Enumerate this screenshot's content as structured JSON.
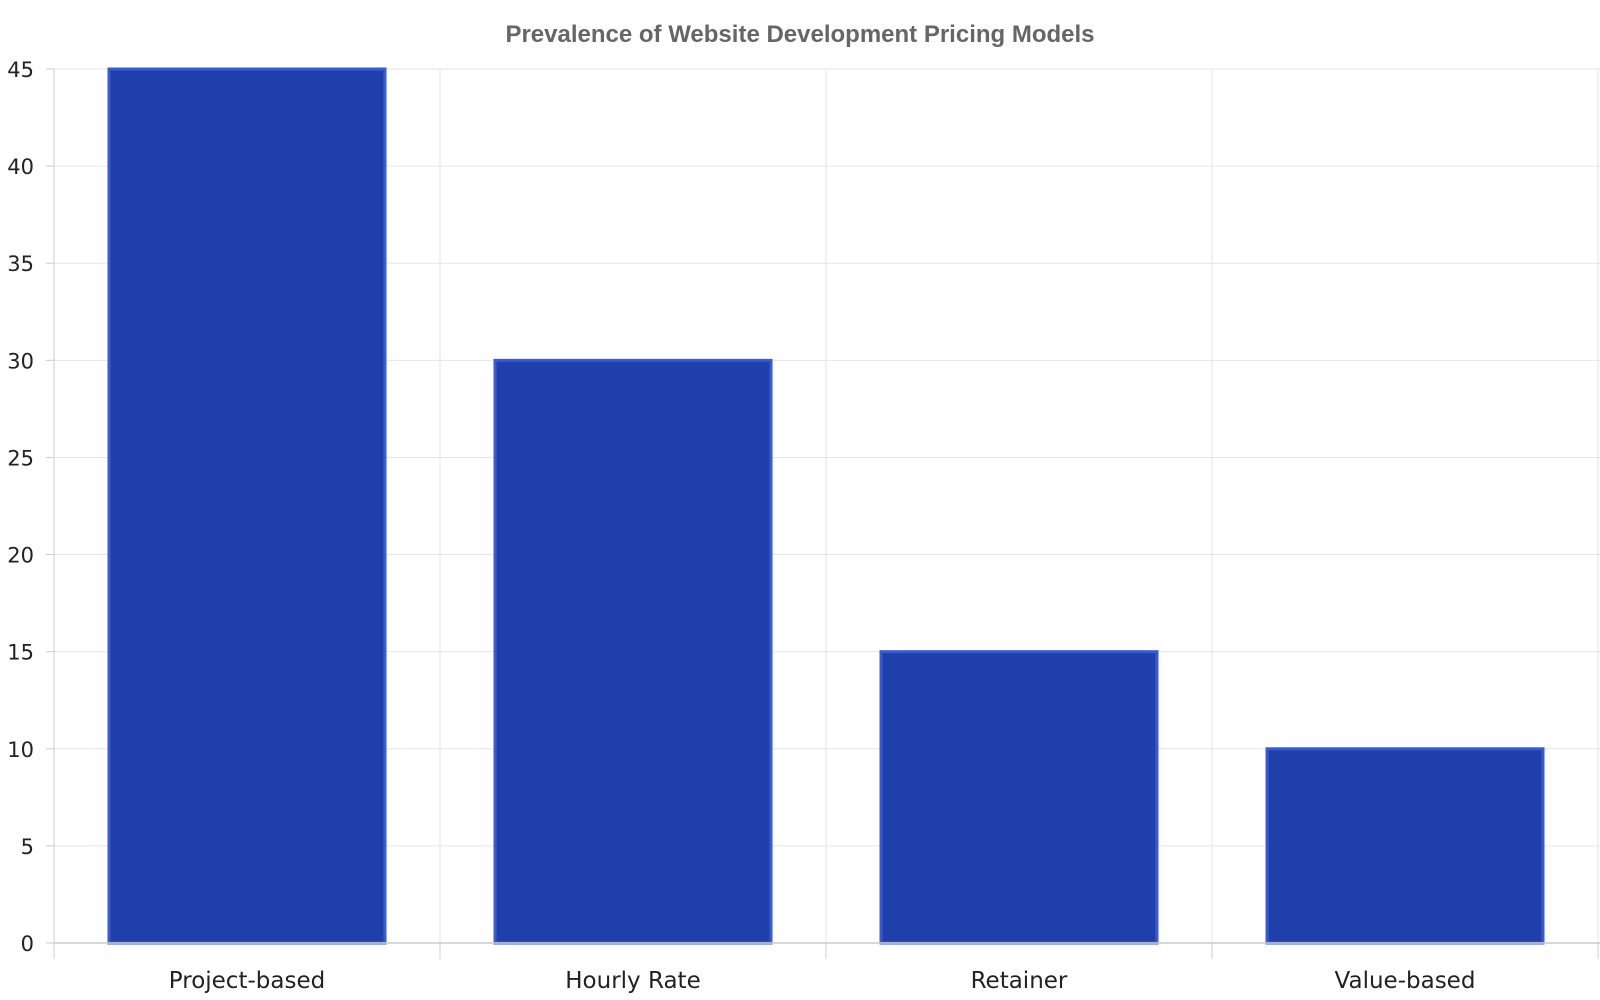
{
  "chart_data": {
    "type": "bar",
    "title": "Prevalence of Website Development Pricing Models",
    "xlabel": "",
    "ylabel": "",
    "categories": [
      "Project-based",
      "Hourly Rate",
      "Retainer",
      "Value-based"
    ],
    "values": [
      45,
      30,
      15,
      10
    ],
    "ylim": [
      0,
      45
    ],
    "yticks": [
      0,
      5,
      10,
      15,
      20,
      25,
      30,
      35,
      40,
      45
    ],
    "grid": true,
    "legend": "none",
    "colors": {
      "bar_fill": "#1f40ab",
      "bar_stroke": "#3a5bd0",
      "grid": "#e6e6e6",
      "axis": "#cccccc",
      "title": "#666666",
      "text": "#222222"
    }
  }
}
